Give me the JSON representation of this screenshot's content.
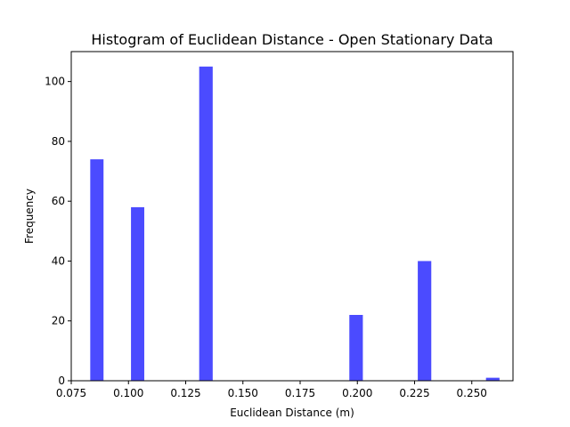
{
  "chart_data": {
    "type": "bar",
    "title": "Histogram of Euclidean Distance - Open Stationary Data",
    "xlabel": "Euclidean Distance (m)",
    "ylabel": "Frequency",
    "xlim": [
      0.075,
      0.268
    ],
    "ylim": [
      0,
      110
    ],
    "xticks": [
      0.075,
      0.1,
      0.125,
      0.15,
      0.175,
      0.2,
      0.225,
      0.25
    ],
    "xtick_labels": [
      "0.075",
      "0.100",
      "0.125",
      "0.150",
      "0.175",
      "0.200",
      "0.225",
      "0.250"
    ],
    "yticks": [
      0,
      20,
      40,
      60,
      80,
      100
    ],
    "ytick_labels": [
      "0",
      "20",
      "40",
      "60",
      "80",
      "100"
    ],
    "bar_color": "#4b4bff",
    "grid": false,
    "bins": [
      {
        "x0": 0.0833,
        "x1": 0.0891,
        "count": 74
      },
      {
        "x0": 0.1011,
        "x1": 0.1069,
        "count": 58
      },
      {
        "x0": 0.1309,
        "x1": 0.1368,
        "count": 105
      },
      {
        "x0": 0.1965,
        "x1": 0.2024,
        "count": 22
      },
      {
        "x0": 0.2264,
        "x1": 0.2323,
        "count": 40
      },
      {
        "x0": 0.2562,
        "x1": 0.2621,
        "count": 1
      }
    ]
  }
}
